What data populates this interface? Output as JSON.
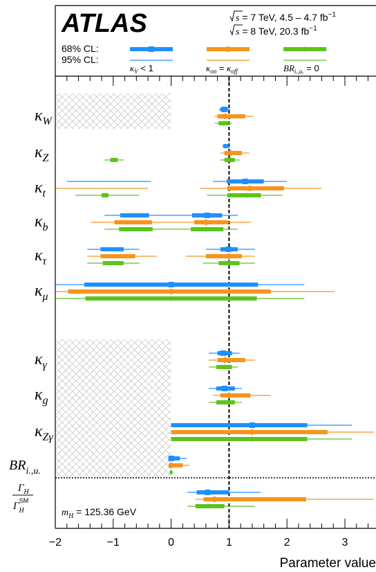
{
  "header": {
    "experiment": "ATLAS",
    "energy_lines": [
      {
        "sqrt": "s",
        "text": " = 7 TeV, 4.5 – 4.7 fb",
        "sup": "−1"
      },
      {
        "sqrt": "s",
        "text": " = 8 TeV, 20.3 fb",
        "sup": "−1"
      }
    ],
    "cl68_label": "68% CL:",
    "cl95_label": "95% CL:",
    "legend": [
      {
        "id": "a",
        "label": "κᵥ < 1",
        "label_parts": [
          "κ",
          "V",
          " < 1"
        ]
      },
      {
        "id": "b",
        "label": "κ_on = κ_off",
        "label_parts": [
          "κ",
          "on",
          " = ",
          "κ",
          "off"
        ]
      },
      {
        "id": "c",
        "label": "BR_i.,u. = 0",
        "label_parts": [
          "BR",
          "i.,u.",
          " = 0"
        ]
      }
    ],
    "mass_label": "m_H = 125.36 GeV",
    "mass_parts": [
      "m",
      "H",
      " = 125.36 GeV"
    ]
  },
  "chart_data": {
    "type": "errorbar",
    "xlabel": "Parameter value",
    "xlim": [
      -2,
      3.5
    ],
    "xticks": [
      -2,
      -1,
      0,
      1,
      2,
      3
    ],
    "reference_line": 1,
    "colors": {
      "a": "#1e90ff",
      "b": "#f7941d",
      "c": "#5cc41b"
    },
    "parameters": [
      {
        "name": "κ_W",
        "sym": "κ",
        "sub": "W",
        "hatched": true,
        "series": [
          {
            "s": "a",
            "v": 0.92,
            "i68": [
              [
                0.85,
                0.98
              ]
            ],
            "i95": [
              [
                0.82,
                1.02
              ]
            ],
            "m": "square"
          },
          {
            "s": "b",
            "v": 0.93,
            "i68": [
              [
                0.8,
                1.28
              ]
            ],
            "i95": [
              [
                0.75,
                1.42
              ]
            ],
            "m": "circle"
          },
          {
            "s": "c",
            "v": 0.91,
            "i68": [
              [
                0.82,
                1.0
              ]
            ],
            "i95": [
              [
                0.75,
                1.05
              ]
            ],
            "m": "diamond"
          }
        ]
      },
      {
        "name": "κ_Z",
        "sym": "κ",
        "sub": "Z",
        "hatched": false,
        "series": [
          {
            "s": "a",
            "v": 1.0,
            "i68": [
              [
                0.9,
                1.0
              ]
            ],
            "i95": [
              [
                0.88,
                1.0
              ]
            ],
            "m": "none"
          },
          {
            "s": "b",
            "v": 1.03,
            "i68": [
              [
                0.92,
                1.22
              ]
            ],
            "i95": [
              [
                0.85,
                1.35
              ]
            ],
            "m": "circle"
          },
          {
            "s": "c",
            "v": 1.02,
            "i68": [
              [
                -1.05,
                -0.92
              ],
              [
                0.92,
                1.1
              ]
            ],
            "i95": [
              [
                -1.15,
                -0.82
              ],
              [
                0.85,
                1.18
              ]
            ],
            "m": "diamond"
          }
        ]
      },
      {
        "name": "κ_t",
        "sym": "κ",
        "sub": "t",
        "hatched": false,
        "series": [
          {
            "s": "a",
            "v": 1.28,
            "i68": [
              [
                0.96,
                1.6
              ]
            ],
            "i95": [
              [
                -1.8,
                -0.35
              ],
              [
                0.72,
                2.0
              ]
            ],
            "m": "square"
          },
          {
            "s": "b",
            "v": 1.36,
            "i68": [
              [
                0.97,
                1.95
              ]
            ],
            "i95": [
              [
                -2.0,
                -0.4
              ],
              [
                0.5,
                2.6
              ]
            ],
            "m": "circle"
          },
          {
            "s": "c",
            "v": 1.31,
            "i68": [
              [
                -1.2,
                -1.08
              ],
              [
                0.97,
                1.55
              ]
            ],
            "i95": [
              [
                -1.65,
                -0.55
              ],
              [
                0.62,
                1.92
              ]
            ],
            "m": "diamond"
          }
        ]
      },
      {
        "name": "κ_b",
        "sym": "κ",
        "sub": "b",
        "hatched": false,
        "series": [
          {
            "s": "a",
            "v": 0.62,
            "i68": [
              [
                -0.88,
                -0.38
              ],
              [
                0.36,
                0.88
              ]
            ],
            "i95": [
              [
                -1.15,
                1.15
              ]
            ],
            "m": "square"
          },
          {
            "s": "b",
            "v": 0.6,
            "i68": [
              [
                -0.98,
                -0.33
              ],
              [
                0.4,
                0.98
              ]
            ],
            "i95": [
              [
                -1.38,
                1.38
              ]
            ],
            "m": "circle"
          },
          {
            "s": "c",
            "v": 0.6,
            "i68": [
              [
                -0.9,
                -0.32
              ],
              [
                0.34,
                0.9
              ]
            ],
            "i95": [
              [
                -1.15,
                1.15
              ]
            ],
            "m": "diamond"
          }
        ]
      },
      {
        "name": "κ_τ",
        "sym": "κ",
        "sub": "τ",
        "hatched": false,
        "series": [
          {
            "s": "a",
            "v": 0.99,
            "i68": [
              [
                -1.22,
                -0.82
              ],
              [
                0.85,
                1.15
              ]
            ],
            "i95": [
              [
                -1.45,
                -0.55
              ],
              [
                0.6,
                1.45
              ]
            ],
            "m": "square"
          },
          {
            "s": "b",
            "v": 1.0,
            "i68": [
              [
                -1.22,
                -0.62
              ],
              [
                0.6,
                1.22
              ]
            ],
            "i95": [
              [
                -1.45,
                -0.25
              ],
              [
                0.25,
                1.45
              ]
            ],
            "m": "circle"
          },
          {
            "s": "c",
            "v": 1.0,
            "i68": [
              [
                -1.18,
                -0.82
              ],
              [
                0.82,
                1.18
              ]
            ],
            "i95": [
              [
                -1.45,
                -0.55
              ],
              [
                0.55,
                1.45
              ]
            ],
            "m": "diamond"
          }
        ]
      },
      {
        "name": "κ_μ",
        "sym": "κ",
        "sub": "μ",
        "hatched": false,
        "series": [
          {
            "s": "a",
            "v": 0.0,
            "i68": [
              [
                -1.5,
                1.5
              ]
            ],
            "i95": [
              [
                -2.0,
                2.3
              ]
            ],
            "m": "square"
          },
          {
            "s": "b",
            "v": 0.0,
            "i68": [
              [
                -1.78,
                1.72
              ]
            ],
            "i95": [
              [
                -2.0,
                2.82
              ]
            ],
            "m": "circle"
          },
          {
            "s": "c",
            "v": 0.0,
            "i68": [
              [
                -1.48,
                1.48
              ]
            ],
            "i95": [
              [
                -2.0,
                2.3
              ]
            ],
            "m": "diamond"
          }
        ]
      },
      {
        "name": "κ_γ",
        "sym": "κ",
        "sub": "γ",
        "hatched": true,
        "series": [
          {
            "s": "a",
            "v": 0.9,
            "i68": [
              [
                0.8,
                1.05
              ]
            ],
            "i95": [
              [
                0.65,
                1.18
              ]
            ],
            "m": "square"
          },
          {
            "s": "b",
            "v": 0.93,
            "i68": [
              [
                0.8,
                1.28
              ]
            ],
            "i95": [
              [
                0.65,
                1.45
              ]
            ],
            "m": "circle"
          },
          {
            "s": "c",
            "v": 0.92,
            "i68": [
              [
                0.78,
                1.05
              ]
            ],
            "i95": [
              [
                0.65,
                1.15
              ]
            ],
            "m": "diamond"
          }
        ]
      },
      {
        "name": "κ_g",
        "sym": "κ",
        "sub": "g",
        "hatched": true,
        "series": [
          {
            "s": "a",
            "v": 0.92,
            "i68": [
              [
                0.78,
                1.1
              ]
            ],
            "i95": [
              [
                0.65,
                1.22
              ]
            ],
            "m": "square"
          },
          {
            "s": "b",
            "v": 1.0,
            "i68": [
              [
                0.85,
                1.37
              ]
            ],
            "i95": [
              [
                0.72,
                1.72
              ]
            ],
            "m": "circle"
          },
          {
            "s": "c",
            "v": 0.92,
            "i68": [
              [
                0.78,
                1.1
              ]
            ],
            "i95": [
              [
                0.65,
                1.22
              ]
            ],
            "m": "diamond"
          }
        ]
      },
      {
        "name": "κ_Zγ",
        "sym": "κ",
        "sub": "Zγ",
        "hatched": true,
        "series": [
          {
            "s": "a",
            "v": 1.4,
            "i68": [
              [
                0.0,
                2.35
              ]
            ],
            "i95": [
              [
                0.0,
                3.12
              ]
            ],
            "m": "square"
          },
          {
            "s": "b",
            "v": 1.4,
            "i68": [
              [
                0.0,
                2.7
              ]
            ],
            "i95": [
              [
                0.0,
                3.5
              ]
            ],
            "m": "circle"
          },
          {
            "s": "c",
            "v": 1.4,
            "i68": [
              [
                0.0,
                2.35
              ]
            ],
            "i95": [
              [
                0.0,
                3.12
              ]
            ],
            "m": "diamond"
          }
        ]
      },
      {
        "name": "BR_i.,u.",
        "sym": "BR",
        "sub": "i.,u.",
        "hatched": true,
        "sym_italic": true,
        "series": [
          {
            "s": "a",
            "v": 0.0,
            "i68": [
              [
                0.0,
                0.15
              ]
            ],
            "i95": [
              [
                0.0,
                0.27
              ]
            ],
            "m": "square"
          },
          {
            "s": "b",
            "v": 0.0,
            "i68": [
              [
                0.0,
                0.2
              ]
            ],
            "i95": [
              [
                0.0,
                0.32
              ]
            ],
            "m": "circle"
          },
          {
            "s": "c",
            "v": 0.0,
            "i68": [],
            "i95": [],
            "m": "diamond"
          }
        ]
      },
      {
        "name": "Γ_H/Γ_H^SM",
        "sym": "Γ",
        "sub": "H",
        "fraction": true,
        "hatched": false,
        "num": {
          "sym": "Γ",
          "sub": "H"
        },
        "den": {
          "sym": "Γ",
          "sub": "H",
          "sup": "SM"
        },
        "series": [
          {
            "s": "a",
            "v": 0.63,
            "i68": [
              [
                0.44,
                1.0
              ]
            ],
            "i95": [
              [
                0.28,
                1.55
              ]
            ],
            "m": "square"
          },
          {
            "s": "b",
            "v": 0.75,
            "i68": [
              [
                0.56,
                2.33
              ]
            ],
            "i95": [
              [
                0.42,
                3.5
              ]
            ],
            "m": "circle"
          },
          {
            "s": "c",
            "v": 0.65,
            "i68": [
              [
                0.42,
                0.92
              ]
            ],
            "i95": [
              [
                0.28,
                1.45
              ]
            ],
            "m": "diamond"
          }
        ]
      }
    ]
  }
}
